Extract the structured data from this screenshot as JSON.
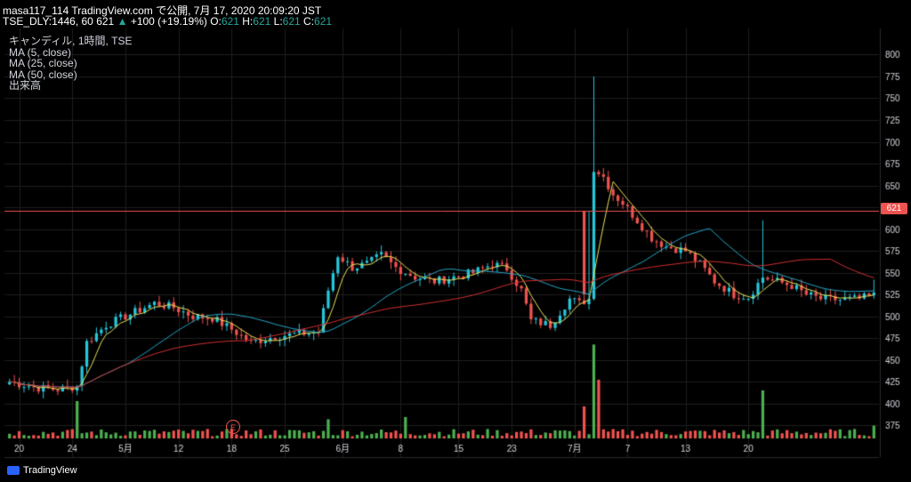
{
  "header": {
    "line1": "masa117_114 TradingView.com で公開, 7月 17, 2020 20:09:20 JST",
    "symbol": "TSE_DLY:1446, 60",
    "last": "621",
    "change": "+100 (+19.19%)",
    "o_label": "O:",
    "o_value": "621",
    "h_label": "H:",
    "h_value": "621",
    "l_label": "L:",
    "l_value": "621",
    "c_label": "C:",
    "c_value": "621"
  },
  "legend": {
    "main": "キャンディル, 1時間, TSE",
    "ma5": "MA (5, close)",
    "ma25": "MA (25, close)",
    "ma50": "MA (50, close)",
    "volume": "出来高"
  },
  "price_tag": "621",
  "earnings_badge": "E",
  "branding": "TradingView",
  "colors": {
    "up": "#26c6da",
    "down": "#ef5350",
    "ma5": "#e8e25a",
    "ma25": "#26a6c7",
    "ma50": "#d32f2f",
    "vol_up": "#4caf50",
    "vol_down": "#ef5350",
    "grid": "#1e1e1e",
    "price_line": "#ef5350"
  },
  "chart_data": {
    "type": "candlestick",
    "ylim": [
      360,
      830
    ],
    "y_ticks": [
      375,
      400,
      425,
      450,
      475,
      500,
      525,
      550,
      575,
      600,
      625,
      650,
      675,
      700,
      725,
      750,
      775,
      800
    ],
    "x_tick_labels": [
      "20",
      "24",
      "5月",
      "12",
      "18",
      "25",
      "6月",
      "8",
      "15",
      "23",
      "7月",
      "7",
      "13",
      "20"
    ],
    "current_price": 621,
    "close_keyframes": [
      [
        0,
        425
      ],
      [
        6,
        418
      ],
      [
        10,
        416
      ],
      [
        14,
        420
      ],
      [
        16,
        470
      ],
      [
        20,
        490
      ],
      [
        26,
        505
      ],
      [
        30,
        515
      ],
      [
        34,
        510
      ],
      [
        38,
        500
      ],
      [
        42,
        498
      ],
      [
        46,
        485
      ],
      [
        50,
        470
      ],
      [
        55,
        477
      ],
      [
        60,
        480
      ],
      [
        64,
        482
      ],
      [
        66,
        530
      ],
      [
        68,
        570
      ],
      [
        71,
        556
      ],
      [
        74,
        560
      ],
      [
        77,
        570
      ],
      [
        80,
        556
      ],
      [
        84,
        545
      ],
      [
        88,
        540
      ],
      [
        92,
        545
      ],
      [
        96,
        550
      ],
      [
        100,
        560
      ],
      [
        103,
        555
      ],
      [
        106,
        530
      ],
      [
        108,
        495
      ],
      [
        112,
        490
      ],
      [
        116,
        520
      ],
      [
        118,
        515
      ],
      [
        120,
        520
      ],
      [
        121,
        670
      ],
      [
        123,
        660
      ],
      [
        125,
        640
      ],
      [
        127,
        630
      ],
      [
        130,
        610
      ],
      [
        133,
        590
      ],
      [
        136,
        580
      ],
      [
        140,
        575
      ],
      [
        143,
        560
      ],
      [
        146,
        540
      ],
      [
        150,
        525
      ],
      [
        153,
        522
      ],
      [
        156,
        545
      ],
      [
        159,
        540
      ],
      [
        162,
        535
      ],
      [
        165,
        525
      ],
      [
        168,
        520
      ],
      [
        172,
        519
      ],
      [
        176,
        520
      ],
      [
        179,
        524
      ]
    ],
    "spikes": [
      [
        121,
        775
      ],
      [
        120,
        620
      ],
      [
        156,
        610
      ],
      [
        179,
        542
      ]
    ],
    "volume_spikes": [
      [
        14,
        0.35
      ],
      [
        66,
        0.18
      ],
      [
        82,
        0.2
      ],
      [
        119,
        0.3
      ],
      [
        121,
        0.88
      ],
      [
        122,
        0.55
      ],
      [
        156,
        0.45
      ],
      [
        179,
        0.12
      ]
    ],
    "n_candles": 180
  }
}
